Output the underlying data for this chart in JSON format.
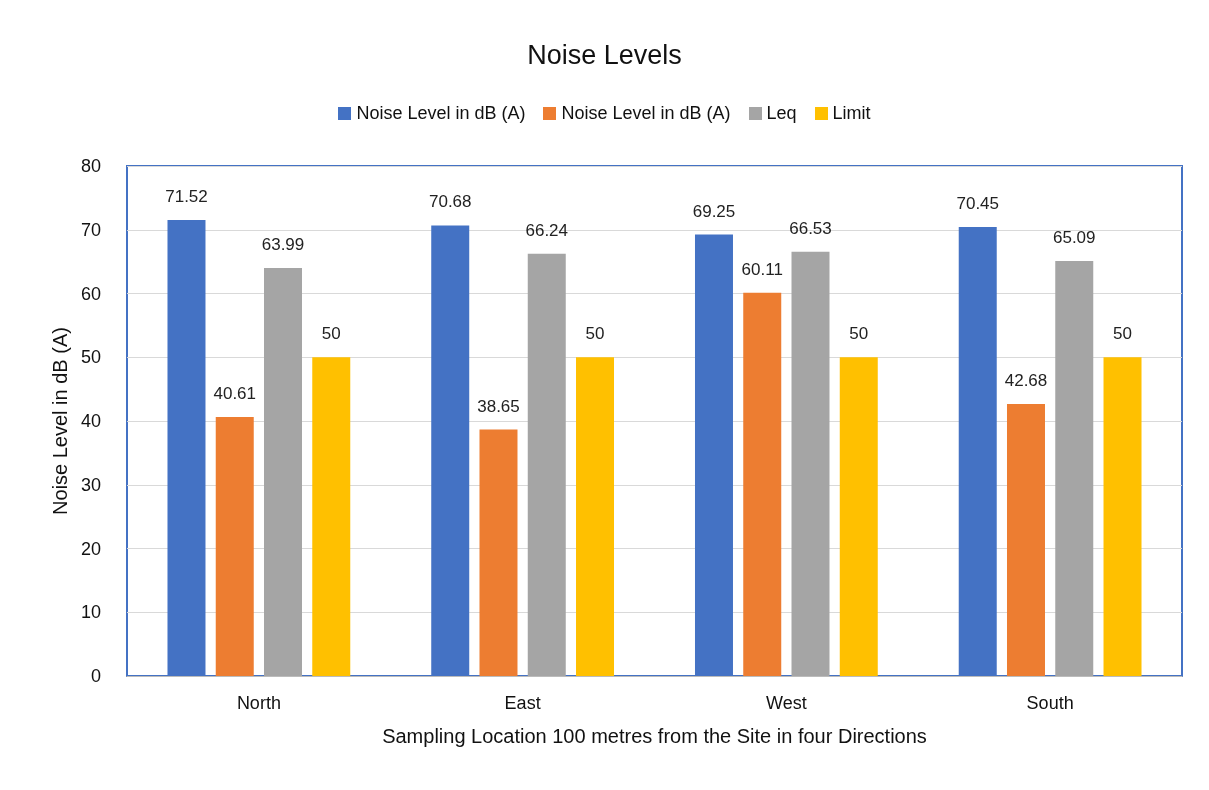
{
  "chart_data": {
    "type": "bar",
    "title": "Noise Levels",
    "xlabel": "Sampling Location 100 metres from the Site in four Directions",
    "ylabel": "Noise Level in dB (A)",
    "categories": [
      "North",
      "East",
      "West",
      "South"
    ],
    "series": [
      {
        "name": "Noise Level in dB (A)",
        "color": "#4472c4",
        "values": [
          71.52,
          70.68,
          69.25,
          70.45
        ]
      },
      {
        "name": "Noise Level in dB (A)",
        "color": "#ed7d31",
        "values": [
          40.61,
          38.65,
          60.11,
          42.68
        ]
      },
      {
        "name": "Leq",
        "color": "#a5a5a5",
        "values": [
          63.99,
          66.24,
          66.53,
          65.09
        ]
      },
      {
        "name": "Limit",
        "color": "#ffc000",
        "values": [
          50,
          50,
          50,
          50
        ]
      }
    ],
    "ylim": [
      0,
      80
    ],
    "yticks": [
      0,
      10,
      20,
      30,
      40,
      50,
      60,
      70,
      80
    ],
    "grid": "y",
    "legend": "top",
    "data_labels": true
  }
}
